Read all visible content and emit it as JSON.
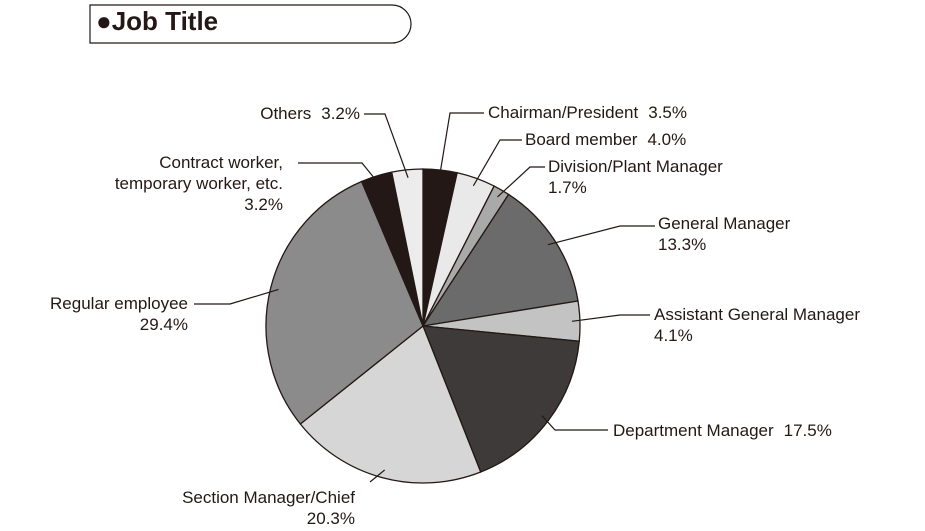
{
  "chart_data": {
    "type": "pie",
    "title": "●Job Title",
    "categories": [
      "Chairman/President",
      "Board member",
      "Division/Plant Manager",
      "General Manager",
      "Assistant General Manager",
      "Department Manager",
      "Section Manager/Chief",
      "Regular employee",
      "Contract worker,\ntemporary worker, etc.",
      "Others"
    ],
    "values": [
      3.5,
      4.0,
      1.7,
      13.3,
      4.1,
      17.5,
      20.3,
      29.4,
      3.2,
      3.2
    ],
    "value_labels": [
      "3.5%",
      "4.0%",
      "1.7%",
      "13.3%",
      "4.1%",
      "17.5%",
      "20.3%",
      "29.4%",
      "3.2%",
      "3.2%"
    ],
    "colors": [
      "#231815",
      "#e9e9e9",
      "#a9a9a9",
      "#6b6b6b",
      "#c3c3c3",
      "#3e3a39",
      "#d6d6d6",
      "#8b8b8b",
      "#231815",
      "#ececec"
    ]
  }
}
